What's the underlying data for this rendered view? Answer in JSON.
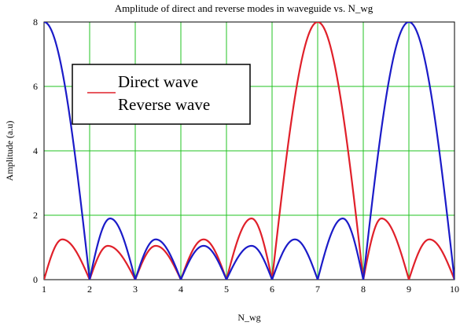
{
  "chart_data": {
    "type": "line",
    "title": "Amplitude of direct and reverse modes in waveguide vs. N_wg",
    "xlabel": "N_wg",
    "ylabel": "Amplitude (a.u)",
    "xlim": [
      1,
      10
    ],
    "ylim": [
      0,
      8
    ],
    "x_ticks": [
      "1",
      "2",
      "3",
      "4",
      "5",
      "6",
      "7",
      "8",
      "9",
      "10"
    ],
    "y_ticks": [
      "0",
      "2",
      "4",
      "6",
      "8"
    ],
    "grid": true,
    "legend_position": "upper-left",
    "series": [
      {
        "name": "Direct wave",
        "color": "#e0202a",
        "peaks": [
          {
            "from": 1,
            "to": 2,
            "x_peak": 1.4,
            "y_peak": 1.25
          },
          {
            "from": 2,
            "to": 3,
            "x_peak": 2.4,
            "y_peak": 1.05
          },
          {
            "from": 3,
            "to": 4,
            "x_peak": 3.45,
            "y_peak": 1.05
          },
          {
            "from": 4,
            "to": 5,
            "x_peak": 4.5,
            "y_peak": 1.25
          },
          {
            "from": 5,
            "to": 6,
            "x_peak": 5.55,
            "y_peak": 1.9
          },
          {
            "from": 6,
            "to": 8,
            "x_peak": 7.0,
            "y_peak": 8.0
          },
          {
            "from": 8,
            "to": 9,
            "x_peak": 8.4,
            "y_peak": 1.9
          },
          {
            "from": 9,
            "to": 10,
            "x_peak": 9.45,
            "y_peak": 1.25
          }
        ]
      },
      {
        "name": "Reverse wave",
        "color": "#1b1bc8",
        "peaks": [
          {
            "from": 0,
            "to": 2,
            "x_peak": 1.0,
            "y_peak": 8.0
          },
          {
            "from": 2,
            "to": 3,
            "x_peak": 2.45,
            "y_peak": 1.9
          },
          {
            "from": 3,
            "to": 4,
            "x_peak": 3.45,
            "y_peak": 1.25
          },
          {
            "from": 4,
            "to": 5,
            "x_peak": 4.5,
            "y_peak": 1.05
          },
          {
            "from": 5,
            "to": 6,
            "x_peak": 5.55,
            "y_peak": 1.05
          },
          {
            "from": 6,
            "to": 7,
            "x_peak": 6.5,
            "y_peak": 1.25
          },
          {
            "from": 7,
            "to": 8,
            "x_peak": 7.55,
            "y_peak": 1.9
          },
          {
            "from": 8,
            "to": 10,
            "x_peak": 9.0,
            "y_peak": 8.0
          }
        ]
      }
    ]
  }
}
